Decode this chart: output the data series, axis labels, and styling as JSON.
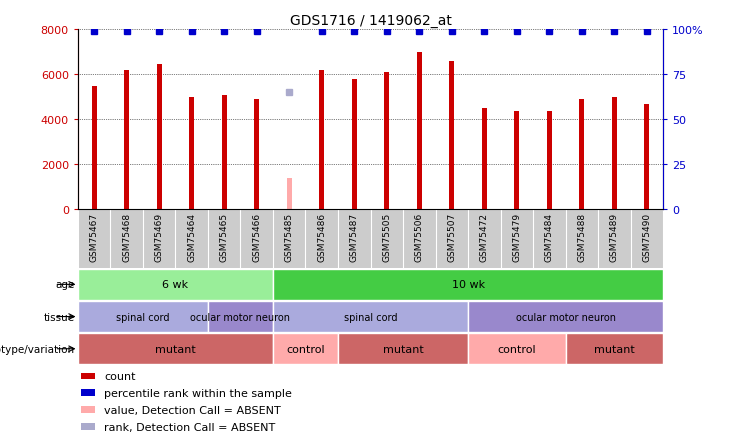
{
  "title": "GDS1716 / 1419062_at",
  "samples": [
    "GSM75467",
    "GSM75468",
    "GSM75469",
    "GSM75464",
    "GSM75465",
    "GSM75466",
    "GSM75485",
    "GSM75486",
    "GSM75487",
    "GSM75505",
    "GSM75506",
    "GSM75507",
    "GSM75472",
    "GSM75479",
    "GSM75484",
    "GSM75488",
    "GSM75489",
    "GSM75490"
  ],
  "counts": [
    5500,
    6200,
    6450,
    5000,
    5100,
    4900,
    1400,
    6200,
    5800,
    6100,
    7000,
    6600,
    4500,
    4350,
    4350,
    4900,
    5000,
    4700
  ],
  "percentile_ranks": [
    99,
    99,
    99,
    99,
    99,
    99,
    65,
    99,
    99,
    99,
    99,
    99,
    99,
    99,
    99,
    99,
    99,
    99
  ],
  "absent_mask": [
    false,
    false,
    false,
    false,
    false,
    false,
    true,
    false,
    false,
    false,
    false,
    false,
    false,
    false,
    false,
    false,
    false,
    false
  ],
  "absent_rank_mask": [
    false,
    false,
    false,
    false,
    false,
    false,
    true,
    false,
    false,
    false,
    false,
    false,
    false,
    false,
    false,
    false,
    false,
    false
  ],
  "bar_color_normal": "#cc0000",
  "bar_color_absent": "#ffaaaa",
  "dot_color_normal": "#0000cc",
  "dot_color_absent": "#aaaacc",
  "ylim_left": [
    0,
    8000
  ],
  "ylim_right": [
    0,
    100
  ],
  "yticks_left": [
    0,
    2000,
    4000,
    6000,
    8000
  ],
  "yticks_right": [
    0,
    25,
    50,
    75,
    100
  ],
  "ytick_right_labels": [
    "0",
    "25",
    "50",
    "75",
    "100%"
  ],
  "age_groups": [
    {
      "label": "6 wk",
      "start": 0,
      "end": 6,
      "color": "#99ee99"
    },
    {
      "label": "10 wk",
      "start": 6,
      "end": 18,
      "color": "#44cc44"
    }
  ],
  "tissue_groups": [
    {
      "label": "spinal cord",
      "start": 0,
      "end": 4,
      "color": "#aaaadd"
    },
    {
      "label": "ocular motor neuron",
      "start": 4,
      "end": 6,
      "color": "#9988cc"
    },
    {
      "label": "spinal cord",
      "start": 6,
      "end": 12,
      "color": "#aaaadd"
    },
    {
      "label": "ocular motor neuron",
      "start": 12,
      "end": 18,
      "color": "#9988cc"
    }
  ],
  "genotype_groups": [
    {
      "label": "mutant",
      "start": 0,
      "end": 6,
      "color": "#cc6666"
    },
    {
      "label": "control",
      "start": 6,
      "end": 8,
      "color": "#ffaaaa"
    },
    {
      "label": "mutant",
      "start": 8,
      "end": 12,
      "color": "#cc6666"
    },
    {
      "label": "control",
      "start": 12,
      "end": 15,
      "color": "#ffaaaa"
    },
    {
      "label": "mutant",
      "start": 15,
      "end": 18,
      "color": "#cc6666"
    }
  ],
  "legend_items": [
    {
      "color": "#cc0000",
      "label": "count"
    },
    {
      "color": "#0000cc",
      "label": "percentile rank within the sample"
    },
    {
      "color": "#ffaaaa",
      "label": "value, Detection Call = ABSENT"
    },
    {
      "color": "#aaaacc",
      "label": "rank, Detection Call = ABSENT"
    }
  ],
  "xtick_bg_color": "#cccccc",
  "fig_width": 7.41,
  "fig_height": 4.35,
  "fig_dpi": 100
}
